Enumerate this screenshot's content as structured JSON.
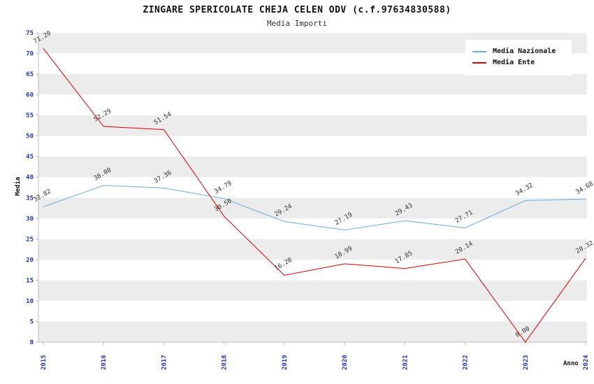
{
  "title": "ZINGARE SPERICOLATE CHEJA CELEN ODV (c.f.97634830588)",
  "subtitle": "Media Importi",
  "legend": [
    {
      "label": "Media Nazionale",
      "color": "#6baed6"
    },
    {
      "label": "Media Ente",
      "color": "#dd0000"
    }
  ],
  "chart_data": {
    "type": "line",
    "x": [
      2015,
      2016,
      2017,
      2018,
      2019,
      2020,
      2021,
      2022,
      2023,
      2024
    ],
    "series": [
      {
        "name": "Media Nazionale",
        "color": "#6baed6",
        "values": [
          32.82,
          38.0,
          37.36,
          34.79,
          29.24,
          27.19,
          29.43,
          27.71,
          34.32,
          34.68
        ]
      },
      {
        "name": "Media Ente",
        "color": "#dd0000",
        "values": [
          71.2,
          52.29,
          51.54,
          30.5,
          16.2,
          18.99,
          17.85,
          20.14,
          0.0,
          20.32
        ]
      }
    ],
    "xlabel": "Anno",
    "ylabel": "Media",
    "ylim": [
      0,
      75
    ],
    "ytick_step": 5,
    "grid": "striped-bands",
    "legend_position": "top-right",
    "band_color": "#ececec",
    "band_alt_color": "#ffffff",
    "axis_color": "#bbbbbb",
    "tick_label_color": "#2233bb",
    "point_label_color": "#333333"
  }
}
